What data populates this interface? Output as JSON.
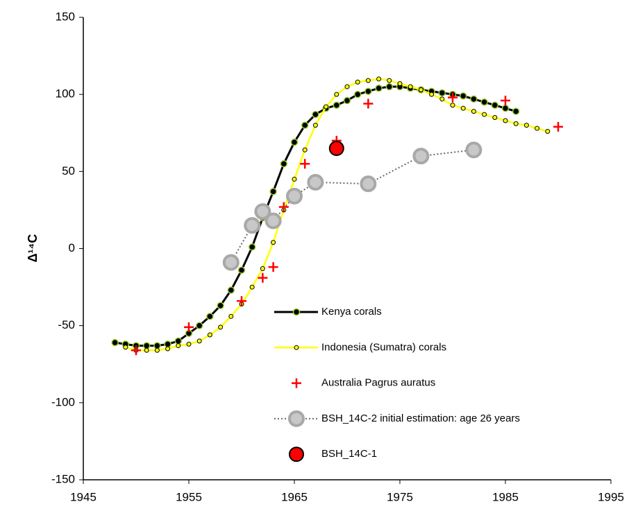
{
  "chart_data": {
    "type": "line",
    "y_label": "Δ¹⁴C",
    "xlim": [
      1945,
      1995
    ],
    "xticks": [
      1945,
      1955,
      1965,
      1975,
      1985,
      1995
    ],
    "ylim": [
      -150,
      150
    ],
    "yticks": [
      -150,
      -100,
      -50,
      0,
      50,
      100,
      150
    ],
    "legend": "lower right",
    "series": [
      {
        "name": "Kenya corals",
        "color": "#000000",
        "marker_color": "#9acd32",
        "marker": "dot-line",
        "x": [
          1948,
          1949,
          1950,
          1951,
          1952,
          1953,
          1954,
          1955,
          1956,
          1957,
          1958,
          1959,
          1960,
          1961,
          1962,
          1963,
          1964,
          1965,
          1966,
          1967,
          1968,
          1969,
          1970,
          1971,
          1972,
          1973,
          1974,
          1975,
          1976,
          1977,
          1978,
          1979,
          1980,
          1981,
          1982,
          1983,
          1984,
          1985,
          1986
        ],
        "values": [
          -61,
          -62,
          -63,
          -63,
          -63,
          -62,
          -60,
          -55,
          -50,
          -44,
          -37,
          -27,
          -14,
          1,
          20,
          37,
          55,
          69,
          80,
          87,
          91,
          93,
          96,
          100,
          102,
          104,
          105,
          105,
          104,
          103,
          102,
          101,
          100,
          99,
          97,
          95,
          93,
          91,
          89
        ]
      },
      {
        "name": "Indonesia (Sumatra) corals",
        "color": "#ffff00",
        "marker_color": "#000000",
        "marker": "small-dot-line",
        "x": [
          1949,
          1950,
          1951,
          1952,
          1953,
          1954,
          1955,
          1956,
          1957,
          1958,
          1959,
          1960,
          1961,
          1962,
          1963,
          1964,
          1965,
          1966,
          1967,
          1968,
          1969,
          1970,
          1971,
          1972,
          1973,
          1974,
          1975,
          1976,
          1977,
          1978,
          1979,
          1980,
          1981,
          1982,
          1983,
          1984,
          1985,
          1986,
          1987,
          1988,
          1989
        ],
        "values": [
          -64,
          -66,
          -66,
          -66,
          -65,
          -63,
          -62,
          -60,
          -56,
          -51,
          -44,
          -36,
          -25,
          -13,
          4,
          25,
          45,
          64,
          80,
          92,
          100,
          105,
          108,
          109,
          110,
          109,
          107,
          105,
          103,
          100,
          97,
          93,
          91,
          89,
          87,
          85,
          83,
          81,
          80,
          78,
          76
        ]
      },
      {
        "name": "Australia Pagrus auratus",
        "color": "#ff0000",
        "marker": "plus",
        "x": [
          1950,
          1955,
          1960,
          1962,
          1963,
          1964,
          1966,
          1969,
          1972,
          1980,
          1985,
          1990
        ],
        "values": [
          -66,
          -51,
          -34,
          -19,
          -12,
          27,
          55,
          70,
          94,
          98,
          96,
          79
        ]
      },
      {
        "name": "BSH_14C-2 initial estimation:  age 26 years",
        "color": "#666666",
        "marker_color": "#c8c8c8",
        "marker": "circle-dotted",
        "x": [
          1959,
          1961,
          1962,
          1963,
          1965,
          1967,
          1972,
          1977,
          1982
        ],
        "values": [
          -9,
          15,
          24,
          18,
          34,
          43,
          42,
          60,
          64
        ]
      },
      {
        "name": "BSH_14C-1",
        "color": "#ff0000",
        "marker_color": "#000000",
        "marker": "circle",
        "x": [
          1969
        ],
        "values": [
          65
        ]
      }
    ]
  }
}
